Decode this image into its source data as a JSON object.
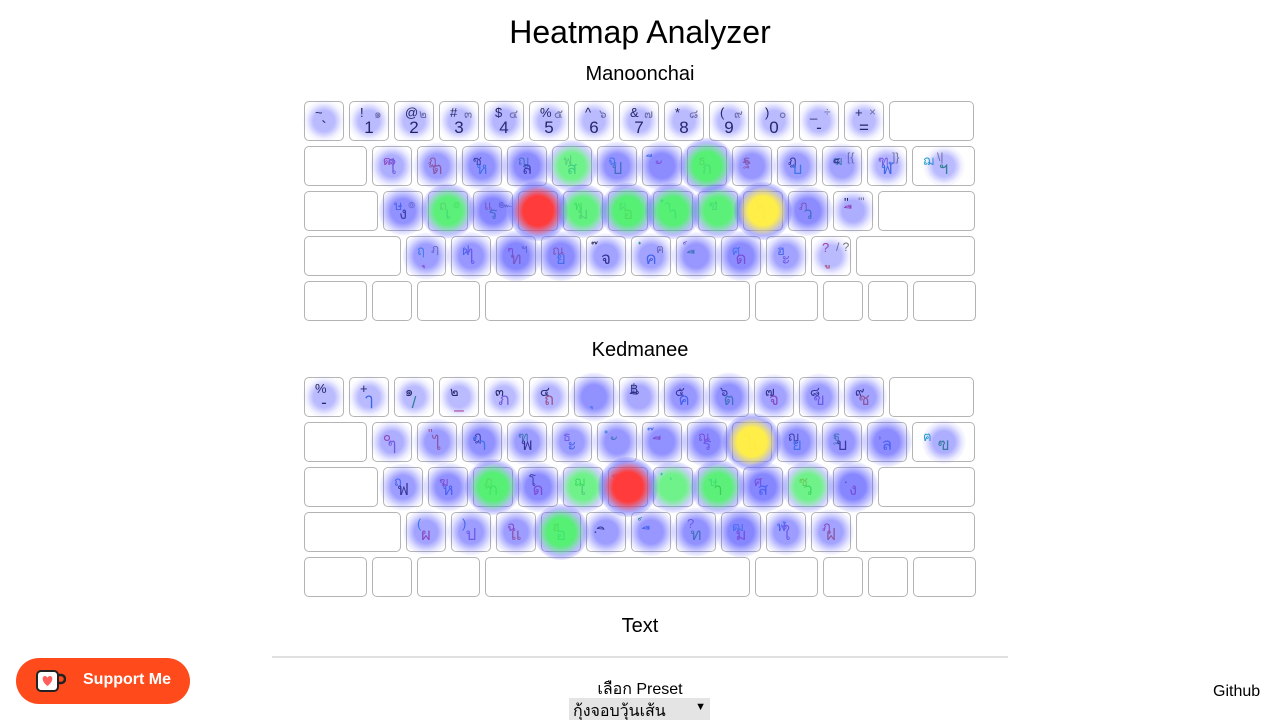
{
  "page": {
    "title": "Heatmap Analyzer",
    "text_section": "Text",
    "preset_label": "เลือก Preset",
    "preset_value": "กุ้งจอบวุ้นเส้น",
    "support_label": "Support Me",
    "github_label": "Github"
  },
  "keyboards": [
    {
      "name": "Manoonchai",
      "rows": [
        [
          [
            "~",
            "",
            "`"
          ],
          [
            "!",
            "๑",
            "1"
          ],
          [
            "@",
            "๒",
            "2"
          ],
          [
            "#",
            "๓",
            "3"
          ],
          [
            "$",
            "๔",
            "4"
          ],
          [
            "%",
            "๕",
            "5"
          ],
          [
            "^",
            "๖",
            "6"
          ],
          [
            "&",
            "๗",
            "7"
          ],
          [
            "*",
            "๘",
            "8"
          ],
          [
            "(",
            "๙",
            "9"
          ],
          [
            ")",
            "๐",
            "0"
          ],
          [
            "_",
            "÷",
            "-"
          ],
          [
            "+",
            "×",
            "="
          ],
          [
            "",
            "",
            ""
          ]
        ],
        [
          [
            "",
            "",
            ""
          ],
          [
            "ฒ",
            "",
            "ใ"
          ],
          [
            "ฏ",
            "",
            "ต"
          ],
          [
            "ซ",
            "",
            "ห"
          ],
          [
            "ญ",
            "",
            "ล"
          ],
          [
            "ฟ",
            "",
            "ส"
          ],
          [
            "ฉ",
            "",
            "ป"
          ],
          [
            "ี",
            "",
            "ั"
          ],
          [
            "ธ",
            "",
            "ก"
          ],
          [
            "ฐ",
            "",
            "ิ"
          ],
          [
            "ฎ",
            "",
            "บ"
          ],
          [
            "ฆ",
            "[{",
            "็"
          ],
          [
            "ฑ",
            "]}",
            "ฬ"
          ],
          [
            "ฌ",
            "\\|",
            "ฯ"
          ]
        ],
        [
          [
            "",
            "",
            ""
          ],
          [
            "ษ",
            "๏",
            "ง"
          ],
          [
            "ถ",
            "๏",
            "เ"
          ],
          [
            "แ",
            "๛",
            "ร"
          ],
          [
            "ช",
            "",
            "น"
          ],
          [
            "พ",
            "",
            "ม"
          ],
          [
            "ผ",
            "",
            "อ"
          ],
          [
            "ำ",
            "",
            "า"
          ],
          [
            "ข",
            "",
            "่"
          ],
          [
            "โ",
            "",
            "ไ"
          ],
          [
            "ภ",
            "",
            "ว"
          ],
          [
            "\"",
            "'\"",
            "ื"
          ],
          [
            "",
            "",
            ""
          ]
        ],
        [
          [
            "",
            "",
            ""
          ],
          [
            "ฤ",
            "ฦ",
            "ุ"
          ],
          [
            "ฝ",
            "",
            "ไ"
          ],
          [
            "ๆ",
            "ฯ",
            "ท"
          ],
          [
            "ณ",
            "",
            "ย"
          ],
          [
            "๊",
            "",
            "จ"
          ],
          [
            "๋",
            "ฅ",
            "ค"
          ],
          [
            "์",
            "",
            "ื"
          ],
          [
            "ศ",
            "",
            "ด"
          ],
          [
            "ฮ",
            "",
            "ะ"
          ],
          [
            "?",
            "/ ?",
            "ู"
          ],
          [
            "",
            "",
            ""
          ]
        ],
        [
          [
            "",
            "",
            ""
          ],
          [
            "",
            "",
            ""
          ],
          [
            "",
            "",
            ""
          ],
          [
            "",
            "",
            ""
          ],
          [
            "",
            "",
            ""
          ],
          [
            "",
            "",
            ""
          ],
          [
            "",
            "",
            ""
          ],
          [
            "",
            "",
            ""
          ]
        ]
      ]
    },
    {
      "name": "Kedmanee",
      "rows": [
        [
          [
            "%",
            "",
            "-"
          ],
          [
            "+",
            "",
            "ๅ"
          ],
          [
            "๑",
            "",
            "/"
          ],
          [
            "๒",
            "",
            "_"
          ],
          [
            "๓",
            "",
            "ภ"
          ],
          [
            "๔",
            "",
            "ถ"
          ],
          [
            "",
            "",
            "ุ"
          ],
          [
            "฿",
            "",
            "ึ"
          ],
          [
            "๕",
            "",
            "ค"
          ],
          [
            "๖",
            "",
            "ต"
          ],
          [
            "๗",
            "",
            "จ"
          ],
          [
            "๘",
            "",
            "ข"
          ],
          [
            "๙",
            "",
            "ช"
          ],
          [
            "",
            "",
            ""
          ]
        ],
        [
          [
            "",
            "",
            ""
          ],
          [
            "๐",
            "",
            "ๆ"
          ],
          [
            "\"",
            "",
            "ไ"
          ],
          [
            "ฎ",
            "",
            "ำ"
          ],
          [
            "ฑ",
            "",
            "พ"
          ],
          [
            "ธ",
            "",
            "ะ"
          ],
          [
            "ํ",
            "",
            "ั"
          ],
          [
            "๊",
            "",
            "ี"
          ],
          [
            "ณ",
            "",
            "ร"
          ],
          [
            "ฯ",
            "",
            "น"
          ],
          [
            "ญ",
            "",
            "ย"
          ],
          [
            "ฐ",
            "",
            "บ"
          ],
          [
            ",",
            "",
            "ล"
          ],
          [
            "ฅ",
            "",
            "ฃ"
          ]
        ],
        [
          [
            "",
            "",
            ""
          ],
          [
            "ฤ",
            "",
            "ฟ"
          ],
          [
            "ฆ",
            "",
            "ห"
          ],
          [
            "ฏ",
            "",
            "ก"
          ],
          [
            "โ",
            "",
            "ด"
          ],
          [
            "ฌ",
            "",
            "เ"
          ],
          [
            "็",
            "",
            "้"
          ],
          [
            "๋",
            "",
            "่"
          ],
          [
            "ษ",
            "",
            "า"
          ],
          [
            "ศ",
            "",
            "ส"
          ],
          [
            "ซ",
            "",
            "ว"
          ],
          [
            ".",
            "",
            "ง"
          ],
          [
            "",
            "",
            ""
          ]
        ],
        [
          [
            "",
            "",
            ""
          ],
          [
            "(",
            "",
            "ผ"
          ],
          [
            ")",
            "",
            "ป"
          ],
          [
            "ฉ",
            "",
            "แ"
          ],
          [
            "ฮ",
            "",
            "อ"
          ],
          [
            "ฺ",
            "",
            "ิ"
          ],
          [
            "์",
            "",
            "ื"
          ],
          [
            "?",
            "",
            "ท"
          ],
          [
            "ฒ",
            "",
            "ม"
          ],
          [
            "ฬ",
            "",
            "ใ"
          ],
          [
            "ฦ",
            "",
            "ฝ"
          ],
          [
            "",
            "",
            ""
          ]
        ],
        [
          [
            "",
            "",
            ""
          ],
          [
            "",
            "",
            ""
          ],
          [
            "",
            "",
            ""
          ],
          [
            "",
            "",
            ""
          ],
          [
            "",
            "",
            ""
          ],
          [
            "",
            "",
            ""
          ],
          [
            "",
            "",
            ""
          ],
          [
            "",
            "",
            ""
          ]
        ]
      ]
    }
  ],
  "key_colors": [
    "#000000",
    "#2a6fd6",
    "#1a9a4a",
    "#c0357a",
    "#8a5cc9",
    "#d0532c",
    "#1aa3c9"
  ],
  "heat_colors": {
    "low": "#5a5aff",
    "mid": "#44ee66",
    "high": "#ffee44",
    "peak": "#ff3b3b"
  },
  "heatmaps": [
    [
      [
        0,
        0.1
      ],
      [
        0,
        0.1
      ],
      [
        0,
        0.1
      ],
      [
        0,
        0.1
      ],
      [
        0,
        0.15
      ],
      [
        0,
        0.1
      ],
      [
        0,
        0.1
      ],
      [
        0,
        0.1
      ],
      [
        0,
        0.1
      ],
      [
        0,
        0.1
      ],
      [
        0,
        0.1
      ],
      [
        0,
        0.1
      ],
      [
        0,
        0.1
      ],
      [
        1,
        0.2
      ],
      [
        1,
        0.35
      ],
      [
        1,
        0.45
      ],
      [
        1,
        0.5
      ],
      [
        1,
        0.6
      ],
      [
        1,
        0.45
      ],
      [
        1,
        0.5
      ],
      [
        1,
        0.8
      ],
      [
        1,
        0.4
      ],
      [
        1,
        0.35
      ],
      [
        1,
        0.3
      ],
      [
        1,
        0.15
      ],
      [
        1,
        0.1
      ],
      [
        2,
        0.45
      ],
      [
        2,
        0.75
      ],
      [
        2,
        0.55
      ],
      [
        2,
        1.0
      ],
      [
        2,
        0.7
      ],
      [
        2,
        0.8
      ],
      [
        2,
        0.8
      ],
      [
        2,
        0.75
      ],
      [
        2,
        0.9
      ],
      [
        2,
        0.5
      ],
      [
        2,
        0.2
      ],
      [
        3,
        0.35
      ],
      [
        3,
        0.4
      ],
      [
        3,
        0.55
      ],
      [
        3,
        0.5
      ],
      [
        3,
        0.3
      ],
      [
        3,
        0.3
      ],
      [
        3,
        0.4
      ],
      [
        3,
        0.5
      ],
      [
        3,
        0.3
      ],
      [
        3,
        0.1
      ]
    ],
    [
      [
        0,
        0.1
      ],
      [
        0,
        0.1
      ],
      [
        0,
        0.1
      ],
      [
        0,
        0.1
      ],
      [
        0,
        0.1
      ],
      [
        0,
        0.15
      ],
      [
        0,
        0.45
      ],
      [
        0,
        0.25
      ],
      [
        0,
        0.4
      ],
      [
        0,
        0.45
      ],
      [
        0,
        0.3
      ],
      [
        0,
        0.35
      ],
      [
        0,
        0.3
      ],
      [
        1,
        0.2
      ],
      [
        1,
        0.35
      ],
      [
        1,
        0.45
      ],
      [
        1,
        0.35
      ],
      [
        1,
        0.35
      ],
      [
        1,
        0.4
      ],
      [
        1,
        0.45
      ],
      [
        1,
        0.5
      ],
      [
        1,
        0.9
      ],
      [
        1,
        0.45
      ],
      [
        1,
        0.4
      ],
      [
        1,
        0.5
      ],
      [
        1,
        0.2
      ],
      [
        2,
        0.35
      ],
      [
        2,
        0.45
      ],
      [
        2,
        0.8
      ],
      [
        2,
        0.5
      ],
      [
        2,
        0.6
      ],
      [
        2,
        1.0
      ],
      [
        2,
        0.6
      ],
      [
        2,
        0.75
      ],
      [
        2,
        0.55
      ],
      [
        2,
        0.6
      ],
      [
        2,
        0.55
      ],
      [
        3,
        0.3
      ],
      [
        3,
        0.35
      ],
      [
        3,
        0.35
      ],
      [
        3,
        0.8
      ],
      [
        3,
        0.35
      ],
      [
        3,
        0.4
      ],
      [
        3,
        0.45
      ],
      [
        3,
        0.55
      ],
      [
        3,
        0.35
      ],
      [
        3,
        0.3
      ]
    ]
  ]
}
